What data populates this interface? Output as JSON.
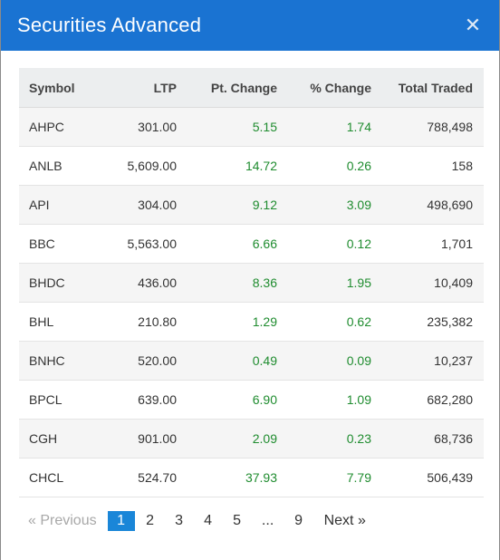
{
  "modal": {
    "title": "Securities Advanced",
    "close_glyph": "✕",
    "close_icon": "close-icon"
  },
  "table": {
    "headers": [
      "Symbol",
      "LTP",
      "Pt. Change",
      "% Change",
      "Total Traded"
    ],
    "rows": [
      [
        "AHPC",
        "301.00",
        "5.15",
        "1.74",
        "788,498"
      ],
      [
        "ANLB",
        "5,609.00",
        "14.72",
        "0.26",
        "158"
      ],
      [
        "API",
        "304.00",
        "9.12",
        "3.09",
        "498,690"
      ],
      [
        "BBC",
        "5,563.00",
        "6.66",
        "0.12",
        "1,701"
      ],
      [
        "BHDC",
        "436.00",
        "8.36",
        "1.95",
        "10,409"
      ],
      [
        "BHL",
        "210.80",
        "1.29",
        "0.62",
        "235,382"
      ],
      [
        "BNHC",
        "520.00",
        "0.49",
        "0.09",
        "10,237"
      ],
      [
        "BPCL",
        "639.00",
        "6.90",
        "1.09",
        "682,280"
      ],
      [
        "CGH",
        "901.00",
        "2.09",
        "0.23",
        "68,736"
      ],
      [
        "CHCL",
        "524.70",
        "37.93",
        "7.79",
        "506,439"
      ]
    ]
  },
  "pagination": {
    "previous": "« Previous",
    "pages": [
      "1",
      "2",
      "3",
      "4",
      "5"
    ],
    "ellipsis": "...",
    "last": "9",
    "next": "Next »",
    "current": "1"
  },
  "colors": {
    "header_bg": "#1a73d2",
    "positive": "#1f8c2f",
    "active_page": "#1a86d8"
  }
}
